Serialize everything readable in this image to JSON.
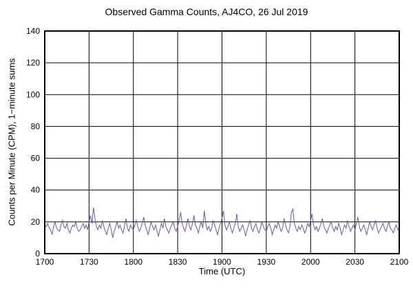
{
  "page": {
    "background": "#ffffff"
  },
  "chart_data": {
    "type": "line",
    "title": "Observed Gamma Counts, AJ4CO, 26 Jul 2019",
    "xlabel": "Time (UTC)",
    "ylabel": "Counts per Minute (CPM), 1−minute sums",
    "x_ticks": [
      "1700",
      "1730",
      "1800",
      "1830",
      "1900",
      "1930",
      "2000",
      "2030",
      "2100"
    ],
    "y_ticks": [
      0,
      20,
      40,
      60,
      80,
      100,
      120,
      140
    ],
    "ylim": [
      0,
      140
    ],
    "x_start_hhmm": "1700",
    "x_step_minutes": 1,
    "grid": true,
    "axis_color": "#000000",
    "series": [
      {
        "name": "gamma-counts-cpm",
        "color": "#5b5ba6",
        "values": [
          18,
          17,
          19,
          16,
          15,
          12,
          17,
          20,
          16,
          15,
          14,
          18,
          21,
          17,
          16,
          19,
          15,
          13,
          16,
          18,
          17,
          20,
          16,
          14,
          15,
          17,
          19,
          16,
          18,
          15,
          20,
          24,
          19,
          29,
          22,
          17,
          15,
          18,
          16,
          21,
          17,
          14,
          12,
          16,
          19,
          15,
          10,
          14,
          17,
          20,
          16,
          18,
          15,
          13,
          17,
          22,
          16,
          14,
          18,
          16,
          15,
          18,
          21,
          17,
          14,
          16,
          19,
          23,
          18,
          15,
          12,
          16,
          20,
          17,
          15,
          18,
          14,
          11,
          15,
          19,
          16,
          22,
          17,
          15,
          13,
          16,
          18,
          20,
          16,
          14,
          17,
          21,
          26,
          19,
          16,
          14,
          18,
          22,
          17,
          15,
          19,
          24,
          18,
          16,
          13,
          17,
          20,
          16,
          27,
          19,
          15,
          17,
          14,
          16,
          21,
          18,
          15,
          12,
          16,
          19,
          22,
          27,
          18,
          15,
          17,
          20,
          16,
          13,
          16,
          19,
          25,
          17,
          14,
          16,
          18,
          15,
          11,
          15,
          18,
          21,
          16,
          14,
          17,
          19,
          15,
          13,
          16,
          20,
          17,
          15,
          14,
          17,
          19,
          16,
          12,
          15,
          18,
          16,
          20,
          17,
          14,
          16,
          22,
          18,
          15,
          13,
          17,
          26,
          28,
          19,
          16,
          14,
          17,
          15,
          18,
          16,
          13,
          15,
          19,
          17,
          21,
          25,
          18,
          15,
          17,
          14,
          16,
          19,
          22,
          17,
          15,
          13,
          16,
          18,
          20,
          16,
          14,
          17,
          15,
          19,
          16,
          12,
          15,
          18,
          16,
          21,
          17,
          14,
          16,
          18,
          15,
          19,
          23,
          17,
          14,
          16,
          18,
          15,
          12,
          16,
          20,
          17,
          15,
          18,
          21,
          16,
          13,
          15,
          17,
          19,
          16,
          14,
          17,
          20,
          16,
          15,
          13,
          16,
          18,
          15,
          16
        ]
      }
    ]
  }
}
